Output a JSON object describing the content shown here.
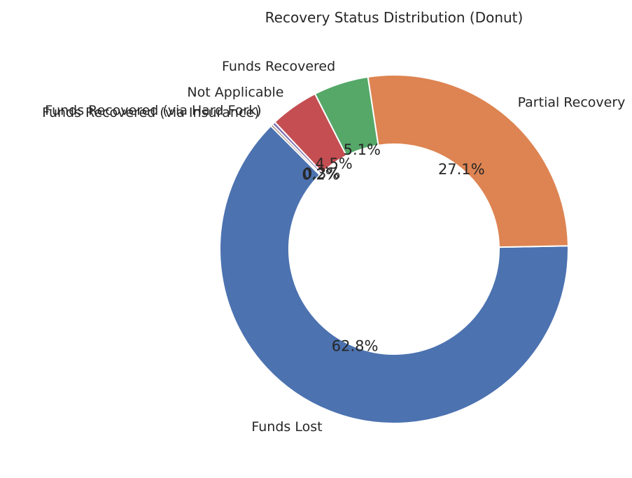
{
  "chart_data": {
    "type": "pie",
    "variant": "donut",
    "title": "Recovery Status Distribution (Donut)",
    "slices": [
      {
        "label": "Funds Lost",
        "value": 62.8,
        "pct_label": "62.8%",
        "color": "#4C72B0"
      },
      {
        "label": "Partial Recovery",
        "value": 27.1,
        "pct_label": "27.1%",
        "color": "#DD8452"
      },
      {
        "label": "Funds Recovered",
        "value": 5.1,
        "pct_label": "5.1%",
        "color": "#55A868"
      },
      {
        "label": "Not Applicable",
        "value": 4.5,
        "pct_label": "4.5%",
        "color": "#C44E52"
      },
      {
        "label": "Funds Recovered (via Hard Fork)",
        "value": 0.3,
        "pct_label": "0.3%",
        "color": "#8172B3"
      },
      {
        "label": "Funds Recovered (via Insurance)",
        "value": 0.2,
        "pct_label": "0.2%",
        "color": "#937860"
      }
    ],
    "legend": "none"
  }
}
